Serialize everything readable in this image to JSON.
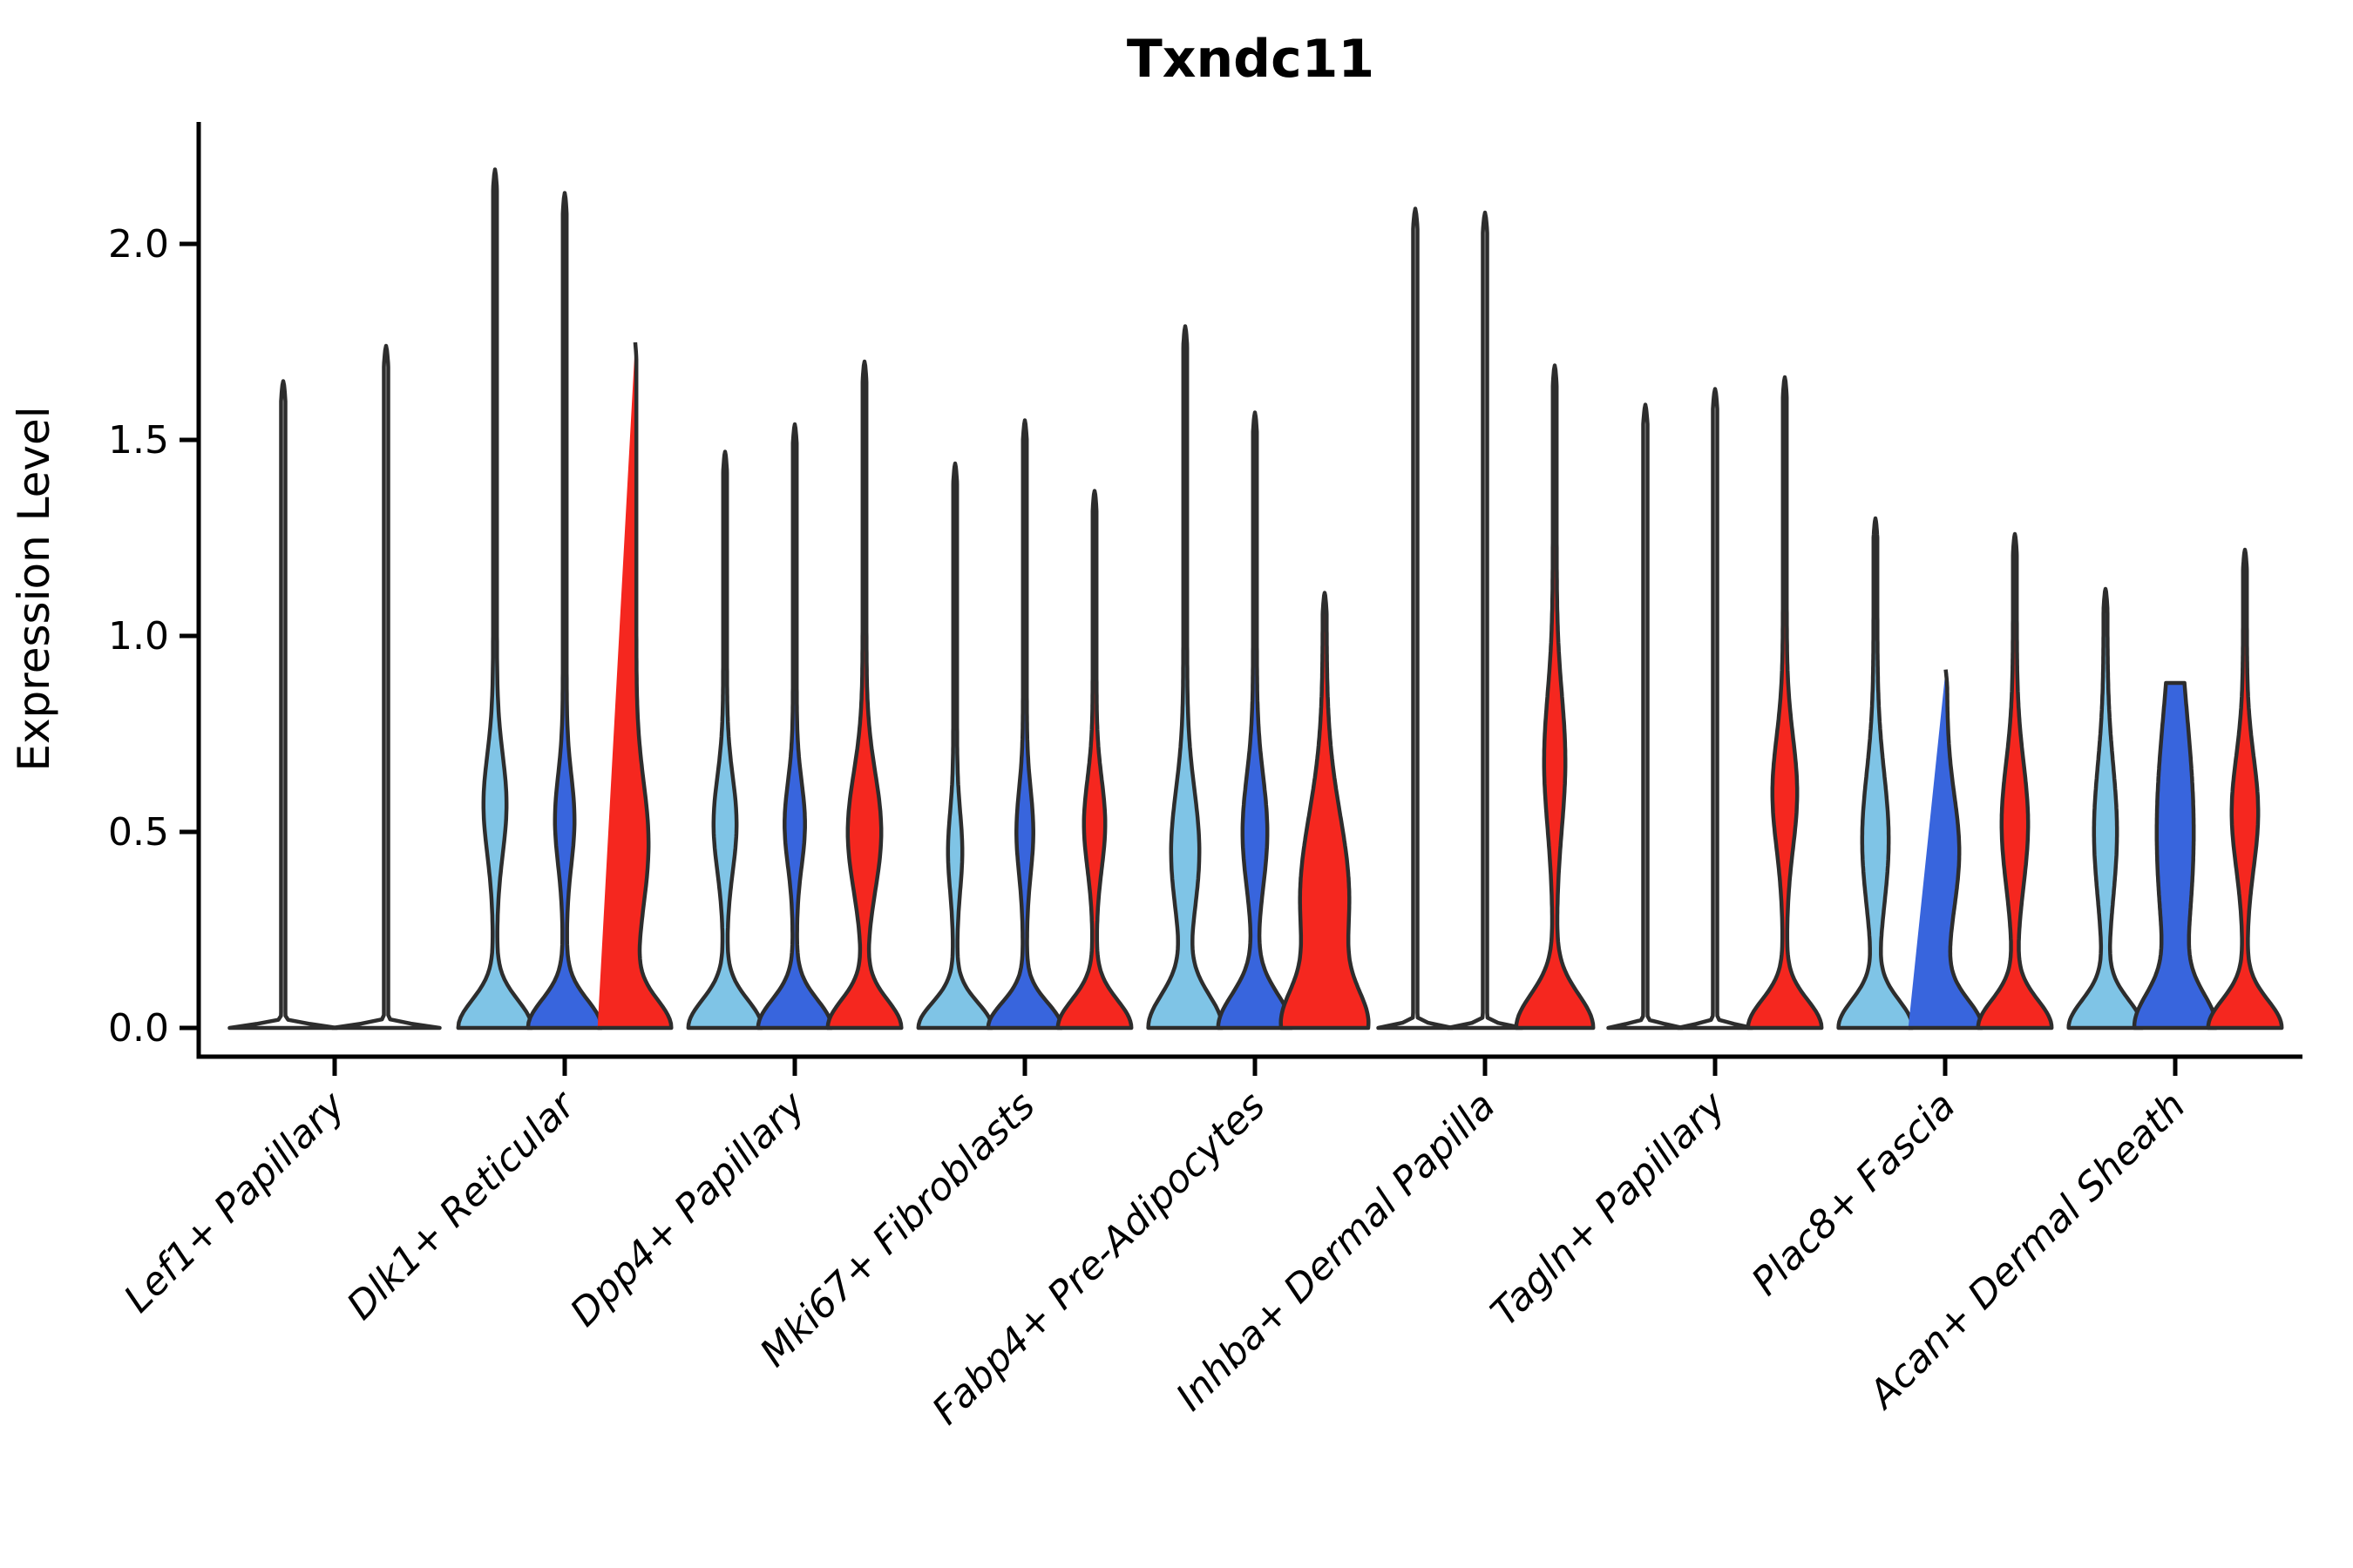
{
  "chart_data": {
    "type": "violin",
    "title": "Txndc11",
    "xlabel": "",
    "ylabel": "Expression Level",
    "ylim": [
      -0.07,
      2.31
    ],
    "yticks": [
      0.0,
      0.5,
      1.0,
      1.5,
      2.0
    ],
    "ytick_labels": [
      "0.0",
      "0.5",
      "1.0",
      "1.5",
      "2.0"
    ],
    "grid": false,
    "legend": "none",
    "categories": [
      "Lef1+ Papillary",
      "Dlk1+ Reticular",
      "Dpp4+ Papillary",
      "Mki67+ Fibroblasts",
      "Fabp4+ Pre-Adipocytes",
      "Inhba+ Dermal Papilla",
      "Tagln+ Papillary",
      "Plac8+ Fascia",
      "Acan+ Dermal Sheath"
    ],
    "hue_slots": [
      "light_blue",
      "dark_blue",
      "red"
    ],
    "violins": [
      {
        "cat": 0,
        "offset": -59,
        "hue": "none",
        "max": 1.65,
        "B": 59,
        "sb": 0.012,
        "M": 0,
        "c": 0,
        "s": 1,
        "stem": 2.5
      },
      {
        "cat": 0,
        "offset": 59,
        "hue": "none",
        "max": 1.74,
        "B": 59,
        "sb": 0.012,
        "M": 0,
        "c": 0,
        "s": 1,
        "stem": 2.5
      },
      {
        "cat": 1,
        "offset": -80,
        "hue": "light_blue",
        "max": 2.19,
        "B": 40,
        "sb": 0.1,
        "M": 11,
        "c": 0.57,
        "s": 0.18,
        "stem": 2.2
      },
      {
        "cat": 1,
        "offset": 0,
        "hue": "dark_blue",
        "max": 2.13,
        "B": 40,
        "sb": 0.1,
        "M": 9,
        "c": 0.53,
        "s": 0.16,
        "stem": 2.2
      },
      {
        "cat": 1,
        "offset": 80,
        "hue": "red",
        "max": 1.76,
        "B": 40,
        "sb": 0.1,
        "M": 14,
        "c": 0.47,
        "s": 0.22,
        "stem": 2.2
      },
      {
        "cat": 2,
        "offset": -80,
        "hue": "light_blue",
        "max": 1.47,
        "B": 40,
        "sb": 0.1,
        "M": 11,
        "c": 0.52,
        "s": 0.17,
        "stem": 2.2
      },
      {
        "cat": 2,
        "offset": 0,
        "hue": "dark_blue",
        "max": 1.54,
        "B": 40,
        "sb": 0.1,
        "M": 9.5,
        "c": 0.52,
        "s": 0.15,
        "stem": 2.2
      },
      {
        "cat": 2,
        "offset": 80,
        "hue": "red",
        "max": 1.7,
        "B": 40,
        "sb": 0.1,
        "M": 17,
        "c": 0.5,
        "s": 0.21,
        "stem": 2.2
      },
      {
        "cat": 3,
        "offset": -80,
        "hue": "light_blue",
        "max": 1.44,
        "B": 40,
        "sb": 0.09,
        "M": 6,
        "c": 0.45,
        "s": 0.14,
        "stem": 2.2
      },
      {
        "cat": 3,
        "offset": 0,
        "hue": "dark_blue",
        "max": 1.55,
        "B": 40,
        "sb": 0.09,
        "M": 7.5,
        "c": 0.5,
        "s": 0.15,
        "stem": 2.2
      },
      {
        "cat": 3,
        "offset": 80,
        "hue": "red",
        "max": 1.37,
        "B": 40,
        "sb": 0.1,
        "M": 10,
        "c": 0.52,
        "s": 0.16,
        "stem": 2.2
      },
      {
        "cat": 4,
        "offset": -80,
        "hue": "light_blue",
        "max": 1.79,
        "B": 40,
        "sb": 0.12,
        "M": 14,
        "c": 0.45,
        "s": 0.22,
        "stem": 2.2
      },
      {
        "cat": 4,
        "offset": 0,
        "hue": "dark_blue",
        "max": 1.57,
        "B": 40,
        "sb": 0.12,
        "M": 12,
        "c": 0.5,
        "s": 0.2,
        "stem": 2.2
      },
      {
        "cat": 4,
        "offset": 80,
        "hue": "red",
        "max": 1.11,
        "B": 40,
        "sb": 0.13,
        "M": 26,
        "c": 0.33,
        "s": 0.3,
        "stem": 2.2
      },
      {
        "cat": 5,
        "offset": -80,
        "hue": "none",
        "max": 2.09,
        "B": 40,
        "sb": 0.012,
        "M": 0,
        "c": 0,
        "s": 1,
        "stem": 2.5
      },
      {
        "cat": 5,
        "offset": 0,
        "hue": "none",
        "max": 2.08,
        "B": 40,
        "sb": 0.012,
        "M": 0,
        "c": 0,
        "s": 1,
        "stem": 2.5
      },
      {
        "cat": 5,
        "offset": 80,
        "hue": "red",
        "max": 1.69,
        "B": 42,
        "sb": 0.12,
        "M": 10,
        "c": 0.68,
        "s": 0.24,
        "stem": 2.2
      },
      {
        "cat": 6,
        "offset": -80,
        "hue": "none",
        "max": 1.59,
        "B": 40,
        "sb": 0.012,
        "M": 0,
        "c": 0,
        "s": 1,
        "stem": 2.5
      },
      {
        "cat": 6,
        "offset": 0,
        "hue": "none",
        "max": 1.63,
        "B": 40,
        "sb": 0.012,
        "M": 0,
        "c": 0,
        "s": 1,
        "stem": 2.5
      },
      {
        "cat": 6,
        "offset": 80,
        "hue": "red",
        "max": 1.66,
        "B": 40,
        "sb": 0.1,
        "M": 12,
        "c": 0.6,
        "s": 0.2,
        "stem": 2.2
      },
      {
        "cat": 7,
        "offset": -80,
        "hue": "light_blue",
        "max": 1.3,
        "B": 40,
        "sb": 0.1,
        "M": 13,
        "c": 0.48,
        "s": 0.24,
        "stem": 2.2
      },
      {
        "cat": 7,
        "offset": 0,
        "hue": "dark_blue",
        "max": 0.92,
        "B": 40,
        "sb": 0.1,
        "M": 14,
        "c": 0.45,
        "s": 0.2,
        "stem": 2.2
      },
      {
        "cat": 7,
        "offset": 80,
        "hue": "red",
        "max": 1.26,
        "B": 40,
        "sb": 0.1,
        "M": 13,
        "c": 0.52,
        "s": 0.22,
        "stem": 2.2
      },
      {
        "cat": 8,
        "offset": -80,
        "hue": "light_blue",
        "max": 1.12,
        "B": 40,
        "sb": 0.1,
        "M": 11,
        "c": 0.5,
        "s": 0.24,
        "stem": 2.2
      },
      {
        "cat": 8,
        "offset": 0,
        "hue": "dark_blue",
        "max": 0.88,
        "B": 40,
        "sb": 0.12,
        "M": 19,
        "c": 0.5,
        "s": 0.42,
        "stem": 2.2,
        "blunt": true
      },
      {
        "cat": 8,
        "offset": 80,
        "hue": "red",
        "max": 1.22,
        "B": 40,
        "sb": 0.1,
        "M": 13,
        "c": 0.55,
        "s": 0.2,
        "stem": 2.2
      }
    ]
  },
  "colors": {
    "light_blue": "#7FC4E6",
    "dark_blue": "#3865DD",
    "red": "#F5271F",
    "none": "#FFFFFF",
    "violin_edge": "#2D2D2D",
    "axis": "#000000",
    "text": "#000000",
    "background": "#FFFFFF"
  }
}
